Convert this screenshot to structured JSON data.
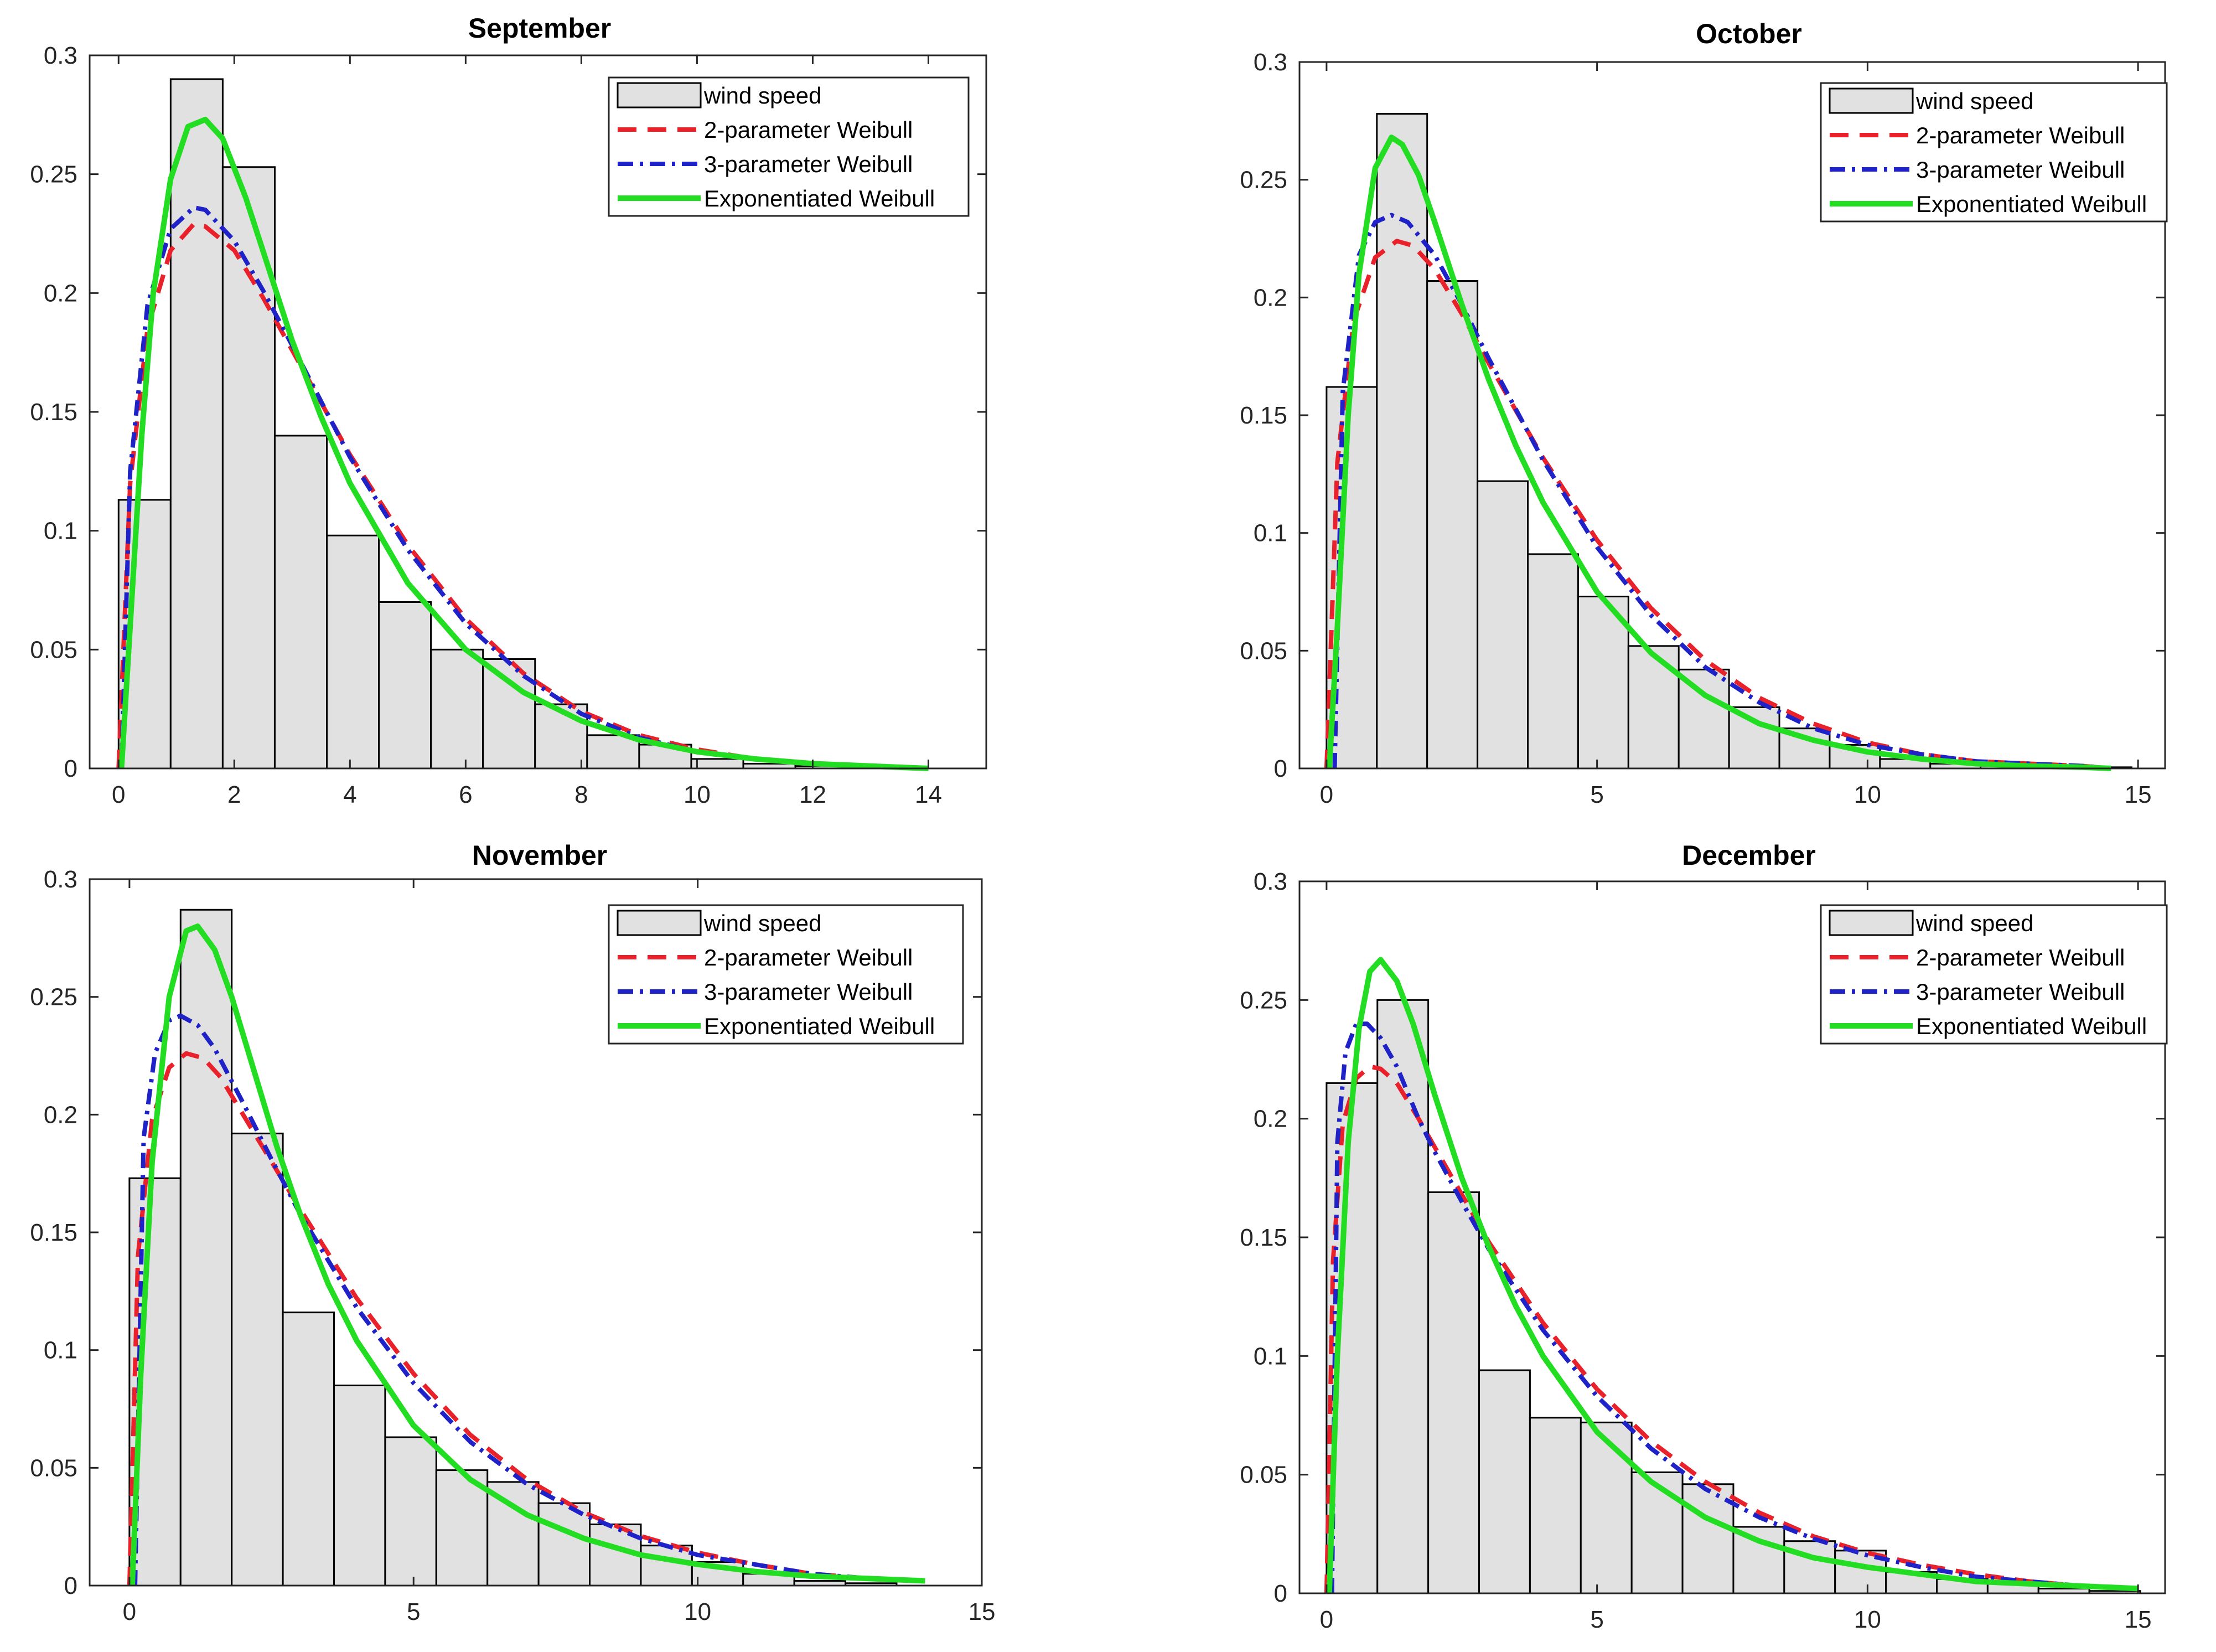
{
  "figure": {
    "title": ""
  },
  "chart_data": [
    {
      "type": "bar",
      "title": "September",
      "xlabel": "",
      "ylabel": "",
      "xlim": [
        -0.5,
        15
      ],
      "ylim": [
        0,
        0.3
      ],
      "xticks": [
        0,
        2,
        4,
        6,
        8,
        10,
        12,
        14
      ],
      "xtick_labels": [
        "0",
        "2",
        "4",
        "6",
        "8",
        "10",
        "12",
        "14"
      ],
      "yticks": [
        0,
        0.05,
        0.1,
        0.15,
        0.2,
        0.25,
        0.3
      ],
      "ytick_labels": [
        "0",
        "0.05",
        "0.1",
        "0.15",
        "0.2",
        "0.25",
        "0.3"
      ],
      "grid": false,
      "legend_position": "top-right",
      "histogram": {
        "name": "wind speed",
        "bin_edges": [
          0,
          0.9,
          1.8,
          2.7,
          3.6,
          4.5,
          5.4,
          6.3,
          7.2,
          8.1,
          9.0,
          9.9,
          10.8,
          11.7,
          12.6,
          13.5
        ],
        "values": [
          0.113,
          0.29,
          0.253,
          0.14,
          0.098,
          0.07,
          0.05,
          0.046,
          0.027,
          0.014,
          0.01,
          0.004,
          0.002,
          0.001,
          0.001
        ]
      },
      "series": [
        {
          "name": "2-parameter Weibull",
          "style": "dashed",
          "color": "#e8212a",
          "x": [
            0,
            0.2,
            0.5,
            0.9,
            1.3,
            1.5,
            2,
            2.5,
            3,
            4,
            5,
            6,
            7,
            8,
            9,
            10,
            11,
            12,
            13,
            14
          ],
          "values": [
            0,
            0.12,
            0.185,
            0.218,
            0.229,
            0.228,
            0.218,
            0.198,
            0.176,
            0.132,
            0.094,
            0.063,
            0.04,
            0.024,
            0.014,
            0.008,
            0.004,
            0.002,
            0.001,
            0
          ]
        },
        {
          "name": "3-parameter Weibull",
          "style": "dashdot",
          "color": "#1f22c6",
          "x": [
            0.05,
            0.2,
            0.5,
            0.9,
            1.3,
            1.5,
            2,
            2.5,
            3,
            4,
            5,
            6,
            7,
            8,
            9,
            10,
            11,
            12,
            13,
            14
          ],
          "values": [
            0,
            0.125,
            0.195,
            0.227,
            0.236,
            0.235,
            0.222,
            0.201,
            0.178,
            0.131,
            0.092,
            0.061,
            0.039,
            0.023,
            0.013,
            0.007,
            0.004,
            0.002,
            0.001,
            0
          ]
        },
        {
          "name": "Exponentiated Weibull",
          "style": "solid",
          "color": "#22dd22",
          "x": [
            0.05,
            0.2,
            0.4,
            0.6,
            0.9,
            1.2,
            1.5,
            1.8,
            2.2,
            2.6,
            3,
            3.5,
            4,
            5,
            6,
            7,
            8,
            9,
            10,
            11,
            12,
            13,
            14
          ],
          "values": [
            0,
            0.06,
            0.14,
            0.2,
            0.248,
            0.27,
            0.273,
            0.265,
            0.24,
            0.21,
            0.18,
            0.148,
            0.12,
            0.078,
            0.05,
            0.032,
            0.02,
            0.012,
            0.007,
            0.004,
            0.002,
            0.001,
            0
          ]
        }
      ]
    },
    {
      "type": "bar",
      "title": "October",
      "xlabel": "",
      "ylabel": "",
      "xlim": [
        -0.5,
        15.5
      ],
      "ylim": [
        0,
        0.3
      ],
      "xticks": [
        0,
        5,
        10,
        15
      ],
      "xtick_labels": [
        "0",
        "5",
        "10",
        "15"
      ],
      "yticks": [
        0,
        0.05,
        0.1,
        0.15,
        0.2,
        0.25,
        0.3
      ],
      "ytick_labels": [
        "0",
        "0.05",
        "0.1",
        "0.15",
        "0.2",
        "0.25",
        "0.3"
      ],
      "grid": false,
      "legend_position": "top-right",
      "histogram": {
        "name": "wind speed",
        "bin_edges": [
          0,
          0.93,
          1.86,
          2.79,
          3.72,
          4.65,
          5.58,
          6.51,
          7.44,
          8.37,
          9.3,
          10.23,
          11.16,
          12.09,
          13.02,
          13.95,
          14.88
        ],
        "values": [
          0.162,
          0.278,
          0.207,
          0.122,
          0.091,
          0.073,
          0.052,
          0.042,
          0.026,
          0.017,
          0.01,
          0.004,
          0.002,
          0.001,
          0.001,
          0.0005
        ]
      },
      "series": [
        {
          "name": "2-parameter Weibull",
          "style": "dashed",
          "color": "#e8212a",
          "x": [
            0,
            0.2,
            0.5,
            0.9,
            1.3,
            1.6,
            2,
            2.5,
            3,
            4,
            5,
            6,
            7,
            8,
            9,
            10,
            11,
            12,
            13,
            14,
            14.5
          ],
          "values": [
            0,
            0.13,
            0.19,
            0.217,
            0.224,
            0.222,
            0.212,
            0.193,
            0.172,
            0.132,
            0.097,
            0.068,
            0.046,
            0.03,
            0.019,
            0.011,
            0.006,
            0.003,
            0.002,
            0.001,
            0
          ]
        },
        {
          "name": "3-parameter Weibull",
          "style": "dashdot",
          "color": "#1f22c6",
          "x": [
            0.15,
            0.3,
            0.6,
            0.9,
            1.2,
            1.5,
            2,
            2.5,
            3,
            4,
            5,
            6,
            7,
            8,
            9,
            10,
            11,
            12,
            13,
            14,
            14.5
          ],
          "values": [
            0,
            0.16,
            0.218,
            0.232,
            0.235,
            0.232,
            0.218,
            0.197,
            0.174,
            0.131,
            0.094,
            0.065,
            0.043,
            0.028,
            0.017,
            0.01,
            0.006,
            0.003,
            0.002,
            0.001,
            0
          ]
        },
        {
          "name": "Exponentiated Weibull",
          "style": "solid",
          "color": "#22dd22",
          "x": [
            0.05,
            0.2,
            0.4,
            0.6,
            0.9,
            1.2,
            1.4,
            1.7,
            2,
            2.5,
            3,
            3.5,
            4,
            5,
            6,
            7,
            8,
            9,
            10,
            11,
            12,
            13,
            14,
            14.5
          ],
          "values": [
            0,
            0.06,
            0.15,
            0.21,
            0.255,
            0.268,
            0.265,
            0.252,
            0.232,
            0.197,
            0.165,
            0.137,
            0.113,
            0.075,
            0.049,
            0.031,
            0.019,
            0.012,
            0.007,
            0.004,
            0.002,
            0.001,
            0.0005,
            0
          ]
        }
      ]
    },
    {
      "type": "bar",
      "title": "November",
      "xlabel": "",
      "ylabel": "",
      "xlim": [
        -0.7,
        15
      ],
      "ylim": [
        0,
        0.3
      ],
      "xticks": [
        0,
        5,
        10,
        15
      ],
      "xtick_labels": [
        "0",
        "5",
        "10",
        "15"
      ],
      "yticks": [
        0,
        0.05,
        0.1,
        0.15,
        0.2,
        0.25,
        0.3
      ],
      "ytick_labels": [
        "0",
        "0.05",
        "0.1",
        "0.15",
        "0.2",
        "0.25",
        "0.3"
      ],
      "grid": false,
      "legend_position": "top-right",
      "histogram": {
        "name": "wind speed",
        "bin_edges": [
          0,
          0.9,
          1.8,
          2.7,
          3.6,
          4.5,
          5.4,
          6.3,
          7.2,
          8.1,
          9.0,
          9.9,
          10.8,
          11.7,
          12.6,
          13.5
        ],
        "values": [
          0.173,
          0.287,
          0.192,
          0.116,
          0.085,
          0.063,
          0.049,
          0.044,
          0.035,
          0.026,
          0.017,
          0.01,
          0.005,
          0.002,
          0.001
        ]
      },
      "series": [
        {
          "name": "2-parameter Weibull",
          "style": "dashed",
          "color": "#e8212a",
          "x": [
            0,
            0.15,
            0.4,
            0.7,
            1.0,
            1.3,
            1.6,
            2,
            2.5,
            3,
            4,
            5,
            6,
            7,
            8,
            9,
            10,
            11,
            12,
            13,
            14
          ],
          "values": [
            0,
            0.14,
            0.198,
            0.22,
            0.226,
            0.224,
            0.216,
            0.2,
            0.18,
            0.16,
            0.122,
            0.09,
            0.064,
            0.045,
            0.031,
            0.021,
            0.014,
            0.009,
            0.005,
            0.003,
            0.002
          ]
        },
        {
          "name": "3-parameter Weibull",
          "style": "dashdot",
          "color": "#1f22c6",
          "x": [
            0.1,
            0.25,
            0.45,
            0.7,
            0.9,
            1.2,
            1.5,
            2,
            2.5,
            3,
            4,
            5,
            6,
            7,
            8,
            9,
            10,
            11,
            12,
            13,
            14
          ],
          "values": [
            0,
            0.19,
            0.226,
            0.24,
            0.242,
            0.238,
            0.228,
            0.205,
            0.181,
            0.158,
            0.118,
            0.086,
            0.061,
            0.043,
            0.03,
            0.02,
            0.013,
            0.009,
            0.005,
            0.003,
            0.002
          ]
        },
        {
          "name": "Exponentiated Weibull",
          "style": "solid",
          "color": "#22dd22",
          "x": [
            0.05,
            0.2,
            0.4,
            0.7,
            1.0,
            1.2,
            1.5,
            1.8,
            2.2,
            2.6,
            3,
            3.5,
            4,
            5,
            6,
            7,
            8,
            9,
            10,
            11,
            12,
            13,
            14
          ],
          "values": [
            0,
            0.09,
            0.18,
            0.25,
            0.278,
            0.28,
            0.27,
            0.25,
            0.218,
            0.186,
            0.158,
            0.128,
            0.104,
            0.068,
            0.045,
            0.03,
            0.02,
            0.013,
            0.009,
            0.006,
            0.004,
            0.003,
            0.002
          ]
        }
      ]
    },
    {
      "type": "bar",
      "title": "December",
      "xlabel": "",
      "ylabel": "",
      "xlim": [
        -0.5,
        15.5
      ],
      "ylim": [
        0,
        0.3
      ],
      "xticks": [
        0,
        5,
        10,
        15
      ],
      "xtick_labels": [
        "0",
        "5",
        "10",
        "15"
      ],
      "yticks": [
        0,
        0.05,
        0.1,
        0.15,
        0.2,
        0.25,
        0.3
      ],
      "ytick_labels": [
        "0",
        "0.05",
        "0.1",
        "0.15",
        "0.2",
        "0.25",
        "0.3"
      ],
      "grid": false,
      "legend_position": "top-right",
      "histogram": {
        "name": "wind speed",
        "bin_edges": [
          0,
          0.94,
          1.88,
          2.82,
          3.76,
          4.7,
          5.64,
          6.58,
          7.52,
          8.46,
          9.4,
          10.34,
          11.28,
          12.22,
          13.16,
          14.1,
          15.04
        ],
        "values": [
          0.215,
          0.25,
          0.169,
          0.094,
          0.074,
          0.072,
          0.051,
          0.046,
          0.028,
          0.022,
          0.018,
          0.009,
          0.006,
          0.004,
          0.002,
          0.001
        ]
      },
      "series": [
        {
          "name": "2-parameter Weibull",
          "style": "dashed",
          "color": "#e8212a",
          "x": [
            0,
            0.12,
            0.3,
            0.55,
            0.8,
            1.0,
            1.3,
            1.7,
            2,
            2.5,
            3,
            4,
            5,
            6,
            7,
            8,
            9,
            10,
            11,
            12,
            13,
            14,
            15
          ],
          "values": [
            0,
            0.14,
            0.198,
            0.217,
            0.222,
            0.221,
            0.215,
            0.2,
            0.188,
            0.168,
            0.148,
            0.114,
            0.086,
            0.064,
            0.047,
            0.034,
            0.024,
            0.017,
            0.012,
            0.008,
            0.005,
            0.003,
            0.002
          ]
        },
        {
          "name": "3-parameter Weibull",
          "style": "dashdot",
          "color": "#1f22c6",
          "x": [
            0.1,
            0.2,
            0.35,
            0.55,
            0.75,
            1.0,
            1.3,
            1.7,
            2,
            2.5,
            3,
            4,
            5,
            6,
            7,
            8,
            9,
            10,
            11,
            12,
            13,
            14,
            15
          ],
          "values": [
            0,
            0.19,
            0.228,
            0.24,
            0.24,
            0.234,
            0.222,
            0.2,
            0.186,
            0.165,
            0.145,
            0.111,
            0.083,
            0.061,
            0.044,
            0.032,
            0.023,
            0.016,
            0.011,
            0.007,
            0.005,
            0.003,
            0.002
          ]
        },
        {
          "name": "Exponentiated Weibull",
          "style": "solid",
          "color": "#22dd22",
          "x": [
            0.05,
            0.2,
            0.4,
            0.6,
            0.8,
            1.0,
            1.3,
            1.6,
            2,
            2.5,
            3,
            3.5,
            4,
            5,
            6,
            7,
            8,
            9,
            10,
            11,
            12,
            13,
            14,
            15
          ],
          "values": [
            0,
            0.1,
            0.19,
            0.238,
            0.262,
            0.267,
            0.258,
            0.24,
            0.21,
            0.175,
            0.146,
            0.121,
            0.1,
            0.068,
            0.047,
            0.032,
            0.022,
            0.015,
            0.011,
            0.008,
            0.005,
            0.004,
            0.003,
            0.002
          ]
        }
      ]
    }
  ]
}
